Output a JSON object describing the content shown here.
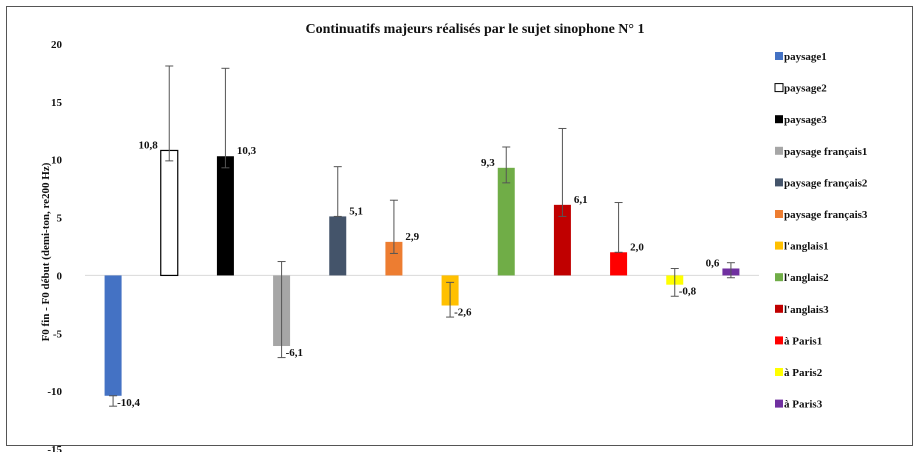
{
  "chart_data": {
    "type": "bar",
    "title": "Continuatifs majeurs réalisés par le sujet sinophone N° 1",
    "ylabel": "F0 fin - F0 début (demi-ton, re200 Hz)",
    "xlabel": "",
    "ylim": [
      -15,
      20
    ],
    "yticks": [
      20,
      15,
      10,
      5,
      0,
      -5,
      -10,
      -15
    ],
    "grid": false,
    "legend_position": "right",
    "series": [
      {
        "name": "paysage1",
        "value": -10.4,
        "label": "-10,4",
        "err_low": -11.3,
        "err_high": -10.4,
        "color": "#4472c4",
        "fill": "solid"
      },
      {
        "name": "paysage2",
        "value": 10.8,
        "label": "10,8",
        "err_low": 9.9,
        "err_high": 18.1,
        "color": "#ffffff",
        "fill": "hollow"
      },
      {
        "name": "paysage3",
        "value": 10.3,
        "label": "10,3",
        "err_low": 9.3,
        "err_high": 17.9,
        "color": "#000000",
        "fill": "solid"
      },
      {
        "name": "paysage français1",
        "value": -6.1,
        "label": "-6,1",
        "err_low": -7.1,
        "err_high": 1.2,
        "color": "#a6a6a6",
        "fill": "solid"
      },
      {
        "name": "paysage français2",
        "value": 5.1,
        "label": "5,1",
        "err_low": 5.1,
        "err_high": 9.4,
        "color": "#44546a",
        "fill": "solid"
      },
      {
        "name": "paysage français3",
        "value": 2.9,
        "label": "2,9",
        "err_low": 1.9,
        "err_high": 6.5,
        "color": "#ed7d31",
        "fill": "solid"
      },
      {
        "name": "l'anglais1",
        "value": -2.6,
        "label": "-2,6",
        "err_low": -3.6,
        "err_high": -0.6,
        "color": "#ffc000",
        "fill": "solid"
      },
      {
        "name": "l'anglais2",
        "value": 9.3,
        "label": "9,3",
        "err_low": 8.0,
        "err_high": 11.1,
        "color": "#70ad47",
        "fill": "solid"
      },
      {
        "name": "l'anglais3",
        "value": 6.1,
        "label": "6,1",
        "err_low": 5.1,
        "err_high": 12.7,
        "color": "#c00000",
        "fill": "solid"
      },
      {
        "name": "à Paris1",
        "value": 2.0,
        "label": "2,0",
        "err_low": 2.0,
        "err_high": 6.3,
        "color": "#ff0000",
        "fill": "solid"
      },
      {
        "name": "à Paris2",
        "value": -0.8,
        "label": "-0,8",
        "err_low": -1.8,
        "err_high": 0.6,
        "color": "#ffff00",
        "fill": "solid"
      },
      {
        "name": "à Paris3",
        "value": 0.6,
        "label": "0,6",
        "err_low": -0.2,
        "err_high": 1.1,
        "color": "#7030a0",
        "fill": "solid"
      }
    ]
  }
}
